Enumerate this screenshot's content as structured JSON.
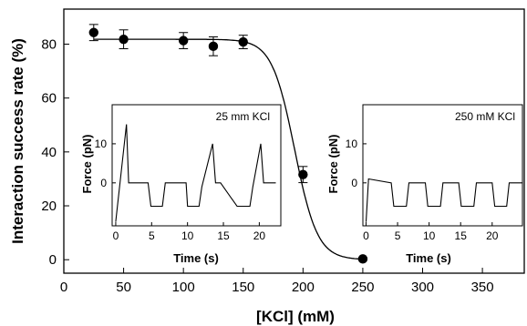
{
  "chart_data": [
    {
      "type": "scatter",
      "xlabel": "[KCl] (mM)",
      "ylabel": "Interaction success rate (%)",
      "xlim": [
        0,
        385
      ],
      "ylim": [
        -5,
        93
      ],
      "xticks": [
        0,
        50,
        100,
        150,
        200,
        250,
        300,
        350
      ],
      "yticks": [
        0,
        20,
        40,
        60,
        80
      ],
      "grid": false,
      "series": [
        {
          "marker": "filled-circle",
          "x": [
            25,
            50,
            100,
            125,
            150,
            200,
            250
          ],
          "y": [
            84.3,
            81.8,
            81.3,
            79.2,
            80.8,
            31.6,
            0.3
          ],
          "error": [
            3,
            3.5,
            3,
            3.5,
            2.5,
            3,
            0
          ]
        }
      ],
      "fit_curve": {
        "type": "sigmoid",
        "top": 81.8,
        "bottom": 0,
        "midpoint": 193,
        "slope": 9.5
      }
    },
    {
      "type": "line",
      "title": "25 mm KCl",
      "xlabel": "Time (s)",
      "ylabel": "Force (pN)",
      "xlim": [
        -0.5,
        23
      ],
      "ylim": [
        -11,
        20
      ],
      "xticks": [
        0,
        5,
        10,
        15,
        20
      ],
      "yticks": [
        0,
        10
      ],
      "series": [
        {
          "x": [
            0,
            1.5,
            1.8,
            2.5,
            4.5,
            4.9,
            5.3,
            6.5,
            6.9,
            9.8,
            10.0,
            10.4,
            11.6,
            12.0,
            13.5,
            13.9,
            14.6,
            16.9,
            17.3,
            18.7,
            19.1,
            20.2,
            20.6,
            22.3
          ],
          "y": [
            -10,
            15,
            0,
            0,
            0,
            -6,
            -6,
            -6,
            0,
            0,
            -6,
            -6,
            -6,
            -1,
            10,
            0,
            0,
            -6,
            -6,
            -6,
            -1,
            10,
            0,
            0
          ]
        }
      ]
    },
    {
      "type": "line",
      "title": "250 mM KCl",
      "xlabel": "Time (s)",
      "ylabel": "Force (pN)",
      "xlim": [
        -0.5,
        24.8
      ],
      "ylim": [
        -11,
        20
      ],
      "xticks": [
        0,
        5,
        10,
        15,
        20
      ],
      "yticks": [
        0,
        10
      ],
      "series": [
        {
          "x": [
            0,
            0.4,
            4.0,
            4.4,
            6.4,
            6.8,
            9.4,
            9.8,
            11.8,
            12.2,
            14.7,
            15.1,
            17.1,
            17.5,
            20.0,
            20.4,
            22.3,
            22.7,
            24.8
          ],
          "y": [
            -10,
            1,
            0,
            -6,
            -6,
            0,
            0,
            -6,
            -6,
            0,
            0,
            -6,
            -6,
            0,
            0,
            -6,
            -6,
            0,
            0
          ]
        }
      ]
    }
  ]
}
